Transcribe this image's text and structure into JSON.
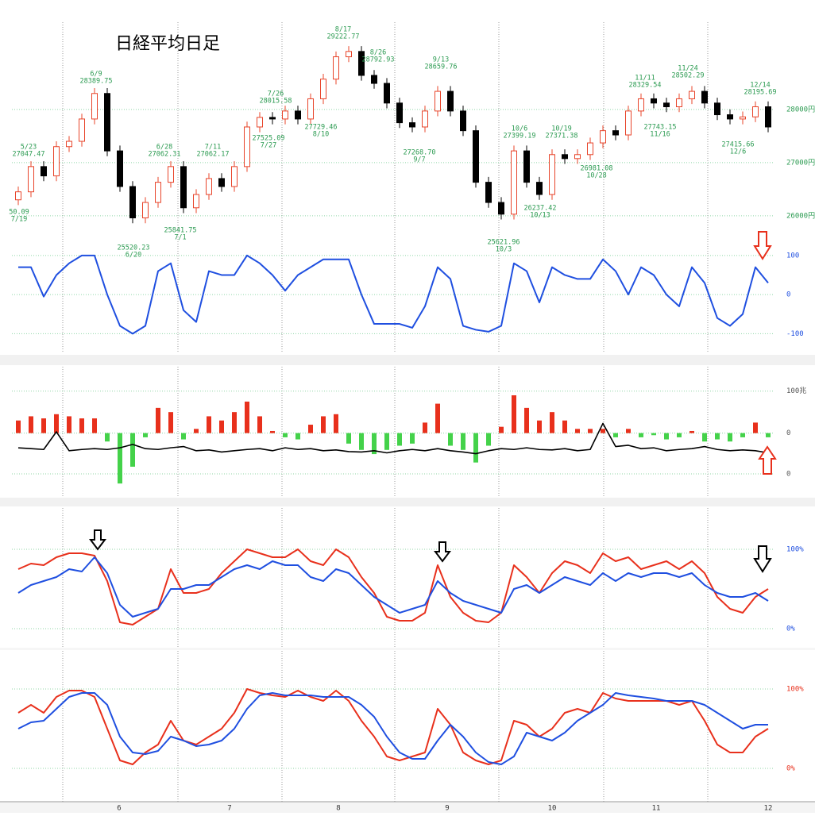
{
  "months": [
    "6",
    "7",
    "8",
    "9",
    "10",
    "11",
    "12"
  ],
  "chart_data": [
    {
      "type": "candlestick",
      "title": "日経平均日足",
      "up_color": "#e8442a",
      "down_color": "#000000",
      "tick_color": "#2a9a50",
      "grid": true,
      "ylim": [
        25430,
        29640
      ],
      "yticks": [
        {
          "value": 26000,
          "label": "26000円"
        },
        {
          "value": 27000,
          "label": "27000円"
        },
        {
          "value": 28000,
          "label": "28000円"
        }
      ],
      "open": [
        26300,
        26450,
        26925,
        26750,
        27300,
        27400,
        27820,
        28300,
        27220,
        26550,
        25960,
        26250,
        26630,
        26925,
        26150,
        26400,
        26700,
        26550,
        26925,
        27670,
        27850,
        27820,
        27970,
        27820,
        28200,
        28570,
        28990,
        29090,
        28640,
        28490,
        28120,
        27750,
        27670,
        27970,
        28340,
        27970,
        27600,
        26630,
        26250,
        26030,
        27220,
        26630,
        26400,
        27150,
        27075,
        27150,
        27370,
        27600,
        27520,
        27970,
        28200,
        28120,
        28050,
        28200,
        28340,
        28120,
        27900,
        27820,
        27860,
        28050
      ],
      "high": [
        26550,
        27025,
        27025,
        27400,
        27500,
        27920,
        28400,
        28400,
        27320,
        26650,
        26350,
        26730,
        27025,
        27025,
        26500,
        26800,
        26800,
        27025,
        27770,
        27950,
        27950,
        28070,
        28070,
        28300,
        28670,
        29090,
        29190,
        29190,
        28740,
        28590,
        28220,
        27850,
        28070,
        28440,
        28440,
        28070,
        27700,
        26730,
        26350,
        27320,
        27320,
        26730,
        27250,
        27250,
        27250,
        27470,
        27700,
        27700,
        28070,
        28300,
        28300,
        28220,
        28300,
        28440,
        28440,
        28220,
        28000,
        27960,
        28150,
        28150
      ],
      "low": [
        26200,
        26350,
        26650,
        26650,
        27200,
        27300,
        27720,
        27120,
        26450,
        25860,
        25860,
        26150,
        26530,
        26050,
        26050,
        26300,
        26450,
        26450,
        26825,
        27570,
        27720,
        27720,
        27720,
        27720,
        28100,
        28470,
        28890,
        28540,
        28390,
        28020,
        27650,
        27570,
        27570,
        27870,
        27870,
        27500,
        26530,
        26150,
        25930,
        25930,
        26530,
        26300,
        26300,
        26975,
        26975,
        27050,
        27270,
        27420,
        27420,
        27870,
        28020,
        27950,
        27950,
        28100,
        28020,
        27800,
        27720,
        27720,
        27760,
        27570
      ],
      "close": [
        26450,
        26925,
        26750,
        27300,
        27400,
        27820,
        28300,
        27220,
        26550,
        25960,
        26250,
        26630,
        26925,
        26150,
        26400,
        26700,
        26550,
        26925,
        27670,
        27850,
        27820,
        27970,
        27820,
        28200,
        28570,
        28990,
        29090,
        28640,
        28490,
        28120,
        27750,
        27670,
        27970,
        28340,
        27970,
        27600,
        26630,
        26250,
        26030,
        27220,
        26630,
        26400,
        27150,
        27075,
        27150,
        27370,
        27600,
        27520,
        27970,
        28200,
        28120,
        28050,
        28200,
        28340,
        28120,
        27900,
        27820,
        27860,
        28050,
        27670
      ],
      "annotations": [
        [
          "50.09",
          "7/19"
        ],
        [
          "5/23",
          "27047.47"
        ],
        [
          "6/9",
          "28389.75"
        ],
        [
          "6/28",
          "27062.31"
        ],
        [
          "7/11",
          "27062.17"
        ],
        [
          "25520.23",
          "6/20"
        ],
        [
          "25841.75",
          "7/1"
        ],
        [
          "7/26",
          "28015.58"
        ],
        [
          "27525.09",
          "7/27"
        ],
        [
          "27729.46",
          "8/10"
        ],
        [
          "8/17",
          "29222.77"
        ],
        [
          "8/26",
          "28792.93"
        ],
        [
          "9/13",
          "28659.76"
        ],
        [
          "27268.70",
          "9/7"
        ],
        [
          "10/6",
          "27399.19"
        ],
        [
          "25621.96",
          "10/3"
        ],
        [
          "10/19",
          "27371.38"
        ],
        [
          "26237.42",
          "10/13"
        ],
        [
          "26981.08",
          "10/28"
        ],
        [
          "11/11",
          "28329.54"
        ],
        [
          "11/24",
          "28502.29"
        ],
        [
          "27743.15",
          "11/16"
        ],
        [
          "12/14",
          "28195.69"
        ],
        [
          "27415.66",
          "12/6"
        ]
      ]
    },
    {
      "type": "line",
      "tick_color": "#1f4fe0",
      "grid": true,
      "ylim": [
        -150,
        120
      ],
      "yticks": [
        100,
        0,
        -100
      ],
      "series": [
        {
          "color": "#1f4fe0",
          "values": [
            70,
            70,
            -5,
            50,
            80,
            100,
            100,
            0,
            -80,
            -100,
            -80,
            60,
            80,
            -40,
            -70,
            60,
            50,
            50,
            100,
            80,
            50,
            10,
            50,
            70,
            90,
            90,
            90,
            0,
            -75,
            -75,
            -75,
            -85,
            -30,
            70,
            40,
            -80,
            -90,
            -95,
            -80,
            80,
            60,
            -20,
            70,
            50,
            40,
            40,
            90,
            60,
            0,
            70,
            50,
            0,
            -30,
            70,
            30,
            -60,
            -80,
            -50,
            70,
            30
          ]
        }
      ]
    },
    {
      "type": "bar_line",
      "tick_color": "#555555",
      "y2tick_color": "#555555",
      "up_color": "#e8301c",
      "down_color": "#44d24a",
      "grid": true,
      "ylim": [
        -150,
        158
      ],
      "yticks": [
        {
          "value": 100,
          "label": "100兆"
        },
        0
      ],
      "y2lim": [
        -53,
        255
      ],
      "y2ticks": [
        0
      ],
      "values": [
        30,
        40,
        35,
        45,
        40,
        35,
        35,
        -20,
        -120,
        -80,
        -10,
        60,
        50,
        -15,
        10,
        40,
        30,
        50,
        75,
        40,
        5,
        -10,
        -15,
        20,
        40,
        45,
        -25,
        -40,
        -50,
        -40,
        -30,
        -25,
        25,
        70,
        -30,
        -40,
        -70,
        -30,
        15,
        90,
        60,
        30,
        50,
        30,
        10,
        10,
        10,
        -10,
        10,
        -10,
        -5,
        -15,
        -10,
        5,
        -20,
        -15,
        -20,
        -10,
        25,
        -10
      ],
      "series": [
        {
          "color": "#000000",
          "axis": "y2",
          "values": [
            62,
            60,
            58,
            100,
            55,
            58,
            60,
            58,
            62,
            70,
            60,
            58,
            62,
            65,
            55,
            57,
            52,
            55,
            58,
            60,
            55,
            62,
            58,
            60,
            55,
            57,
            53,
            52,
            55,
            50,
            55,
            58,
            55,
            60,
            55,
            52,
            48,
            55,
            60,
            58,
            62,
            58,
            57,
            60,
            55,
            58,
            120,
            65,
            68,
            60,
            62,
            55,
            58,
            60,
            65,
            58,
            55,
            57,
            55,
            50
          ]
        }
      ]
    },
    {
      "type": "line",
      "tick_color": "#1f4fe0",
      "grid": true,
      "ylim": [
        -23,
        152
      ],
      "yticks": [
        {
          "value": 100,
          "label": "100%"
        },
        {
          "value": 0,
          "label": "0%"
        }
      ],
      "series": [
        {
          "color": "#e8301c",
          "values": [
            75,
            82,
            80,
            90,
            95,
            95,
            92,
            60,
            8,
            5,
            15,
            25,
            75,
            45,
            45,
            50,
            70,
            85,
            100,
            95,
            90,
            90,
            100,
            85,
            80,
            100,
            90,
            65,
            45,
            15,
            10,
            10,
            20,
            80,
            40,
            20,
            10,
            8,
            20,
            80,
            65,
            45,
            70,
            85,
            80,
            70,
            95,
            85,
            90,
            75,
            80,
            85,
            75,
            85,
            70,
            40,
            25,
            20,
            40,
            50
          ]
        },
        {
          "color": "#1f4fe0",
          "values": [
            45,
            55,
            60,
            65,
            75,
            72,
            90,
            70,
            30,
            15,
            20,
            25,
            50,
            50,
            55,
            55,
            65,
            75,
            80,
            75,
            85,
            80,
            80,
            65,
            60,
            75,
            70,
            55,
            40,
            30,
            20,
            25,
            30,
            60,
            45,
            35,
            30,
            25,
            20,
            50,
            55,
            45,
            55,
            65,
            60,
            55,
            70,
            60,
            70,
            65,
            70,
            70,
            65,
            70,
            55,
            45,
            40,
            40,
            45,
            35
          ]
        }
      ]
    },
    {
      "type": "line",
      "tick_color": "#e8301c",
      "grid": true,
      "ylim": [
        -42,
        148
      ],
      "yticks": [
        {
          "value": 100,
          "label": "100%"
        },
        {
          "value": 0,
          "label": "0%"
        }
      ],
      "series": [
        {
          "color": "#e8301c",
          "values": [
            70,
            80,
            70,
            90,
            98,
            98,
            90,
            50,
            10,
            5,
            20,
            30,
            60,
            35,
            30,
            40,
            50,
            70,
            100,
            95,
            92,
            90,
            98,
            90,
            85,
            98,
            85,
            60,
            40,
            15,
            10,
            15,
            20,
            75,
            55,
            20,
            10,
            5,
            10,
            60,
            55,
            40,
            50,
            70,
            75,
            70,
            95,
            88,
            85,
            85,
            85,
            85,
            80,
            85,
            60,
            30,
            20,
            20,
            40,
            50
          ]
        },
        {
          "color": "#1f4fe0",
          "values": [
            50,
            58,
            60,
            75,
            90,
            95,
            95,
            80,
            40,
            20,
            18,
            22,
            40,
            35,
            28,
            30,
            35,
            50,
            75,
            92,
            95,
            92,
            92,
            92,
            90,
            90,
            90,
            80,
            65,
            40,
            20,
            12,
            12,
            35,
            55,
            40,
            20,
            8,
            5,
            15,
            45,
            40,
            35,
            45,
            60,
            70,
            80,
            95,
            92,
            90,
            88,
            85,
            85,
            85,
            80,
            70,
            60,
            50,
            55,
            55
          ]
        }
      ]
    }
  ]
}
